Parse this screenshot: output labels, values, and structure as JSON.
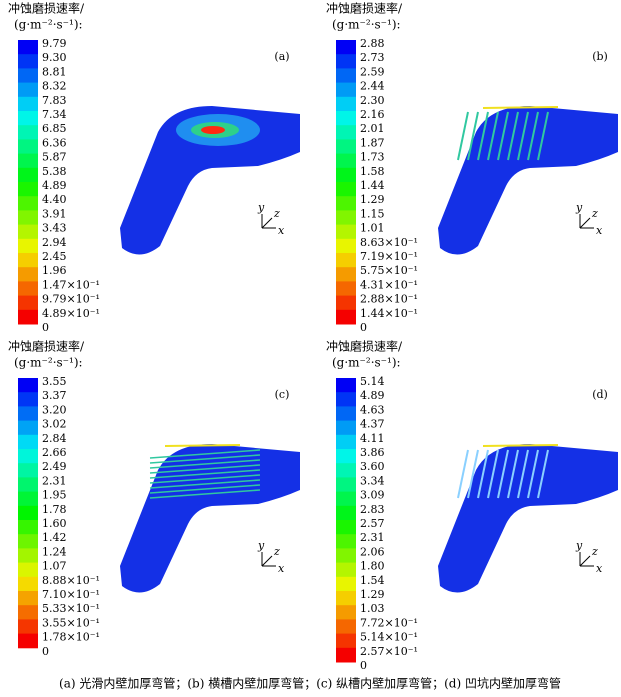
{
  "panels": [
    {
      "title": "冲蚀磨损速率/",
      "unit": "(g·m⁻²·s⁻¹):",
      "label": "(a)",
      "levels": [
        "9.79",
        "9.30",
        "8.81",
        "8.32",
        "7.83",
        "7.34",
        "6.85",
        "6.36",
        "5.87",
        "5.38",
        "4.89",
        "4.40",
        "3.91",
        "3.43",
        "2.94",
        "2.45",
        "1.96",
        "1.47×10⁻¹",
        "9.79×10⁻¹",
        "4.89×10⁻¹",
        "0"
      ],
      "axes": [
        "y",
        "z",
        "x"
      ]
    },
    {
      "title": "冲蚀磨损速率/",
      "unit": "(g·m⁻²·s⁻¹):",
      "label": "(b)",
      "levels": [
        "2.88",
        "2.73",
        "2.59",
        "2.44",
        "2.30",
        "2.16",
        "2.01",
        "1.87",
        "1.73",
        "1.58",
        "1.44",
        "1.29",
        "1.15",
        "1.01",
        "8.63×10⁻¹",
        "7.19×10⁻¹",
        "5.75×10⁻¹",
        "4.31×10⁻¹",
        "2.88×10⁻¹",
        "1.44×10⁻¹",
        "0"
      ],
      "axes": [
        "y",
        "z",
        "x"
      ]
    },
    {
      "title": "冲蚀磨损速率/",
      "unit": "(g·m⁻²·s⁻¹):",
      "label": "(c)",
      "levels": [
        "3.55",
        "3.37",
        "3.20",
        "3.02",
        "2.84",
        "2.66",
        "2.49",
        "2.31",
        "1.95",
        "1.78",
        "1.60",
        "1.42",
        "1.24",
        "1.07",
        "8.88×10⁻¹",
        "7.10×10⁻¹",
        "5.33×10⁻¹",
        "3.55×10⁻¹",
        "1.78×10⁻¹",
        "0"
      ],
      "axes": [
        "y",
        "z",
        "x"
      ]
    },
    {
      "title": "冲蚀磨损速率/",
      "unit": "(g·m⁻²·s⁻¹):",
      "label": "(d)",
      "levels": [
        "5.14",
        "4.89",
        "4.63",
        "4.37",
        "4.11",
        "3.86",
        "3.60",
        "3.34",
        "3.09",
        "2.83",
        "2.57",
        "2.31",
        "2.06",
        "1.80",
        "1.54",
        "1.29",
        "1.03",
        "7.72×10⁻¹",
        "5.14×10⁻¹",
        "2.57×10⁻¹",
        "0"
      ],
      "axes": [
        "y",
        "z",
        "x"
      ]
    }
  ],
  "caption": "(a) 光滑内壁加厚弯管；(b) 横槽内壁加厚弯管；(c) 纵槽内壁加厚弯管；(d) 凹坑内壁加厚弯管"
}
